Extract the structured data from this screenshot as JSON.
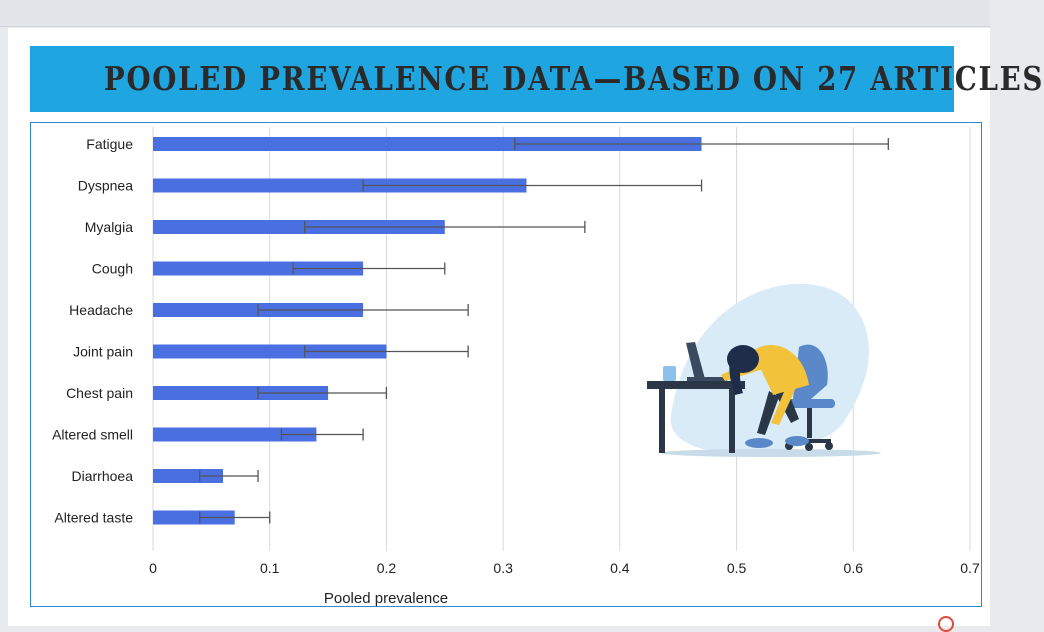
{
  "banner": {
    "title": "POOLED PREVALENCE DATA—BASED ON 27 ARTICLES"
  },
  "colors": {
    "banner": "#1fa6e0",
    "bar": "#4a6fe0",
    "plot_border": "#2f88c7",
    "error_bar": "#555555"
  },
  "illustration": {
    "icon": "exhausted-person-at-desk-icon"
  },
  "chart_data": {
    "type": "bar",
    "orientation": "horizontal",
    "title": "",
    "xlabel": "Pooled prevalence",
    "ylabel": "",
    "xlim": [
      0,
      0.7
    ],
    "x_ticks": [
      0,
      0.1,
      0.2,
      0.3,
      0.4,
      0.5,
      0.6,
      0.7
    ],
    "x_tick_labels": [
      "0",
      "0.1",
      "0.2",
      "0.3",
      "0.4",
      "0.5",
      "0.6",
      "0.7"
    ],
    "grid": "vertical",
    "categories": [
      "Fatigue",
      "Dyspnea",
      "Myalgia",
      "Cough",
      "Headache",
      "Joint pain",
      "Chest pain",
      "Altered smell",
      "Diarrhoea",
      "Altered taste"
    ],
    "values": [
      0.47,
      0.32,
      0.25,
      0.18,
      0.18,
      0.2,
      0.15,
      0.14,
      0.06,
      0.07
    ],
    "ci_low": [
      0.31,
      0.18,
      0.13,
      0.12,
      0.09,
      0.13,
      0.09,
      0.11,
      0.04,
      0.04
    ],
    "ci_high": [
      0.63,
      0.47,
      0.37,
      0.25,
      0.27,
      0.27,
      0.2,
      0.18,
      0.09,
      0.1
    ]
  }
}
